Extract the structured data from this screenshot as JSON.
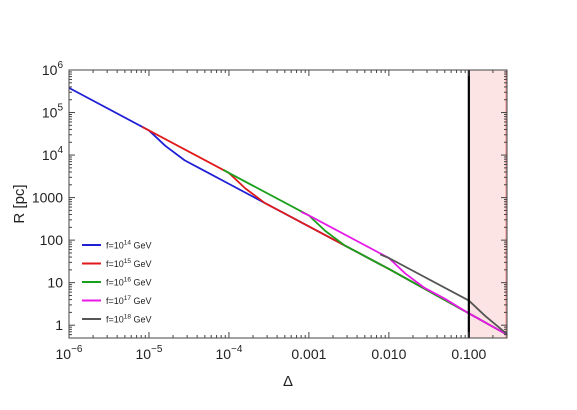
{
  "chart_data": {
    "type": "line",
    "xlabel": "Δ",
    "ylabel": "R [pc]",
    "xscale": "log",
    "yscale": "log",
    "xlim": [
      1e-06,
      0.3
    ],
    "ylim": [
      0.5,
      1000000
    ],
    "grid": false,
    "legend_placement": "bottom-left",
    "x_ticks": [
      {
        "value": 1e-06,
        "base": "10",
        "exp": "−6"
      },
      {
        "value": 1e-05,
        "base": "10",
        "exp": "−5"
      },
      {
        "value": 0.0001,
        "base": "10",
        "exp": "−4"
      },
      {
        "value": 0.001,
        "text": "0.001"
      },
      {
        "value": 0.01,
        "text": "0.010"
      },
      {
        "value": 0.1,
        "text": "0.100"
      }
    ],
    "y_ticks": [
      {
        "value": 1,
        "text": "1"
      },
      {
        "value": 10,
        "text": "10"
      },
      {
        "value": 100,
        "text": "100"
      },
      {
        "value": 1000,
        "text": "1000"
      },
      {
        "value": 10000,
        "base": "10",
        "exp": "4"
      },
      {
        "value": 100000,
        "base": "10",
        "exp": "5"
      },
      {
        "value": 1000000,
        "base": "10",
        "exp": "6"
      }
    ],
    "vertical_line": {
      "x": 0.1,
      "color": "#000000"
    },
    "shaded_region": {
      "x_from": 0.1,
      "x_to": 0.3,
      "color": "#fde4e4",
      "edge_color": "#f4a8a8"
    },
    "series": [
      {
        "name": "f=10^14 GeV",
        "label_base": "f=10",
        "label_exp": "14",
        "label_unit": " GeV",
        "color": "#1f1fd6",
        "x": [
          1e-06,
          1e-05,
          1.6e-05,
          2.8e-05,
          5e-05,
          0.0001,
          0.001,
          0.01,
          0.1,
          0.3
        ],
        "y": [
          380000,
          38000,
          16500,
          7500,
          4200,
          2100,
          210,
          21,
          1.9,
          0.6
        ]
      },
      {
        "name": "f=10^15 GeV",
        "label_base": "f=10",
        "label_exp": "15",
        "label_unit": " GeV",
        "color": "#e01a1a",
        "x": [
          8.2e-06,
          1e-05,
          0.0001,
          0.00016,
          0.00028,
          0.0005,
          0.001,
          0.01,
          0.1,
          0.3
        ],
        "y": [
          46000,
          38000,
          3800,
          1650,
          750,
          420,
          210,
          21,
          1.9,
          0.6
        ]
      },
      {
        "name": "f=10^16 GeV",
        "label_base": "f=10",
        "label_exp": "16",
        "label_unit": " GeV",
        "color": "#1aa01a",
        "x": [
          8.5e-05,
          0.0001,
          0.001,
          0.0016,
          0.0028,
          0.005,
          0.01,
          0.1,
          0.3
        ],
        "y": [
          4500,
          3800,
          380,
          165,
          75,
          42,
          21,
          1.9,
          0.6
        ]
      },
      {
        "name": "f=10^17 GeV",
        "label_base": "f=10",
        "label_exp": "17",
        "label_unit": " GeV",
        "color": "#e81ae8",
        "x": [
          0.0008,
          0.001,
          0.01,
          0.016,
          0.028,
          0.05,
          0.1,
          0.3
        ],
        "y": [
          460,
          380,
          38,
          16.5,
          7.5,
          4.2,
          1.9,
          0.6
        ]
      },
      {
        "name": "f=10^18 GeV",
        "label_base": "f=10",
        "label_exp": "18",
        "label_unit": " GeV",
        "color": "#555555",
        "x": [
          0.0078,
          0.01,
          0.1,
          0.16,
          0.3
        ],
        "y": [
          46,
          38,
          3.8,
          1.65,
          0.62
        ]
      }
    ]
  }
}
